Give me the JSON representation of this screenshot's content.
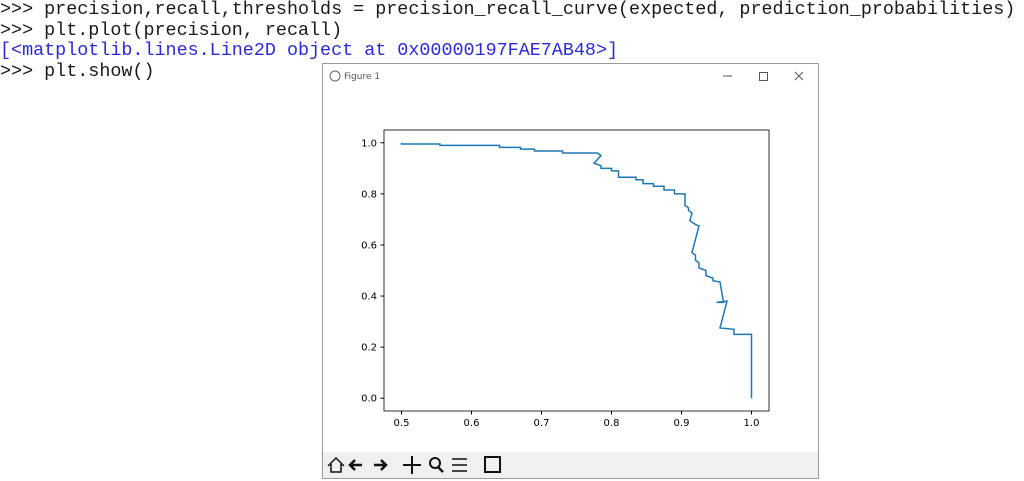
{
  "console": {
    "lines": [
      {
        "text": ">>> precision,recall,thresholds = precision_recall_curve(expected, prediction_probabilities)",
        "color": "#1a1a1a"
      },
      {
        "text": ">>> plt.plot(precision, recall)",
        "color": "#1a1a1a"
      },
      {
        "text": "[<matplotlib.lines.Line2D object at 0x00000197FAE7AB48>]",
        "color": "#2b2bd6"
      },
      {
        "text": ">>> plt.show()",
        "color": "#1a1a1a"
      }
    ]
  },
  "window": {
    "title": "Figure 1"
  },
  "chart_data": {
    "type": "line",
    "color": "#1f77b4",
    "x": [
      0.5,
      0.5,
      0.555,
      0.555,
      0.64,
      0.64,
      0.67,
      0.67,
      0.69,
      0.69,
      0.73,
      0.73,
      0.78,
      0.785,
      0.775,
      0.785,
      0.785,
      0.8,
      0.8,
      0.81,
      0.81,
      0.835,
      0.835,
      0.845,
      0.845,
      0.86,
      0.86,
      0.875,
      0.875,
      0.89,
      0.89,
      0.905,
      0.905,
      0.91,
      0.91,
      0.915,
      0.912,
      0.92,
      0.925,
      0.915,
      0.92,
      0.92,
      0.925,
      0.925,
      0.935,
      0.935,
      0.945,
      0.945,
      0.955,
      0.96,
      0.95,
      0.965,
      0.955,
      0.975,
      0.975,
      1.0,
      1.0
    ],
    "values": [
      1.0,
      0.995,
      0.995,
      0.99,
      0.99,
      0.982,
      0.982,
      0.975,
      0.975,
      0.968,
      0.968,
      0.96,
      0.96,
      0.95,
      0.92,
      0.91,
      0.9,
      0.9,
      0.89,
      0.89,
      0.865,
      0.865,
      0.855,
      0.855,
      0.84,
      0.84,
      0.83,
      0.83,
      0.815,
      0.815,
      0.8,
      0.8,
      0.755,
      0.745,
      0.735,
      0.725,
      0.695,
      0.68,
      0.675,
      0.57,
      0.56,
      0.54,
      0.53,
      0.51,
      0.5,
      0.48,
      0.47,
      0.46,
      0.455,
      0.375,
      0.375,
      0.38,
      0.275,
      0.27,
      0.25,
      0.25,
      0.0
    ],
    "xlim": [
      0.475,
      1.025
    ],
    "ylim": [
      -0.05,
      1.05
    ],
    "xticks": [
      0.5,
      0.6,
      0.7,
      0.8,
      0.9,
      {
        "value": 1.0,
        "label": "1.0"
      }
    ],
    "yticks": [
      {
        "value": 0,
        "label": "0.0"
      },
      0.2,
      0.4,
      0.6,
      0.8,
      {
        "value": 1.0,
        "label": "1.0"
      }
    ]
  }
}
